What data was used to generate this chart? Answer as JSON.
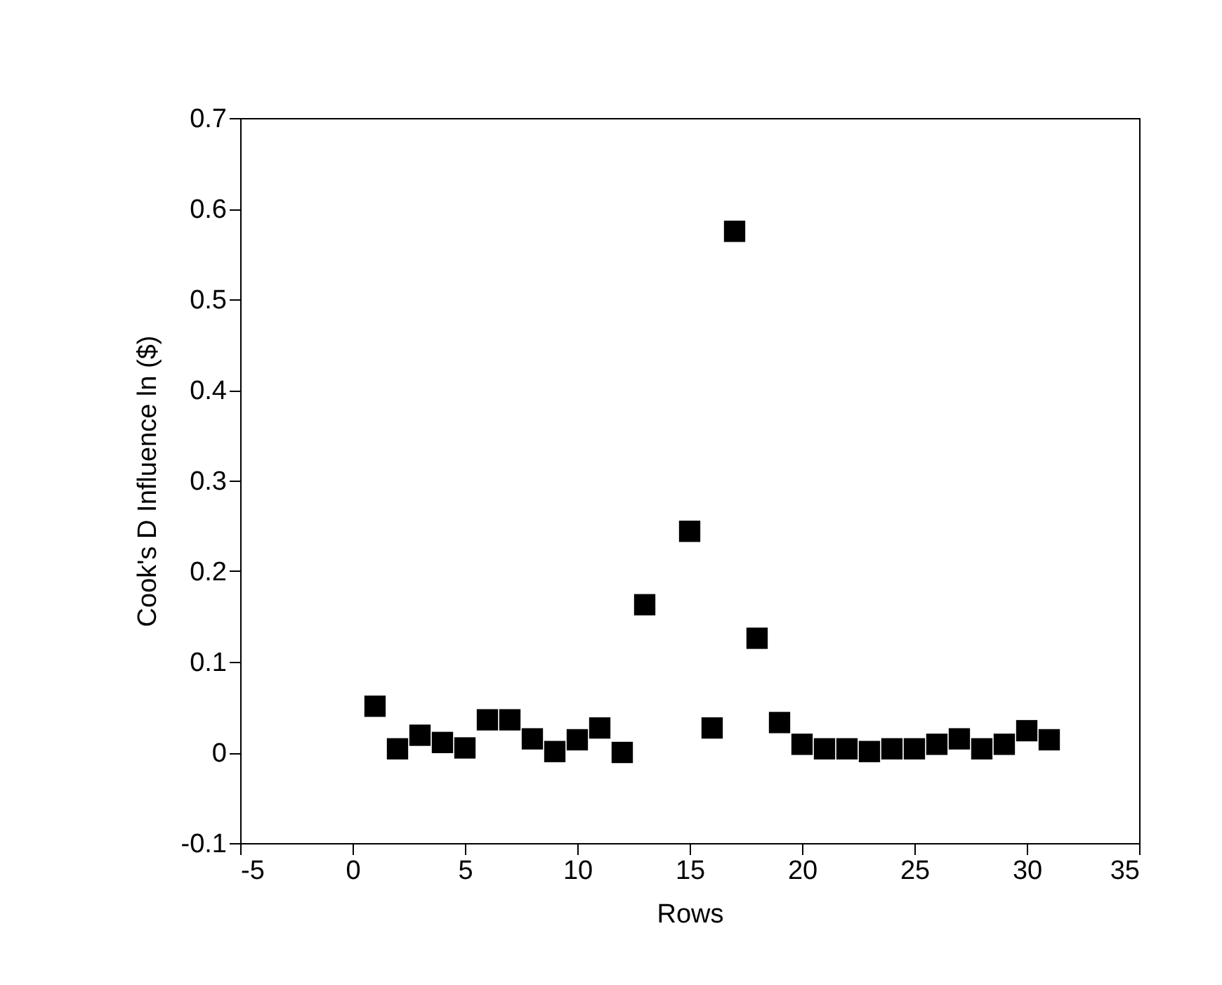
{
  "chart_data": {
    "type": "scatter",
    "xlabel": "Rows",
    "ylabel": "Cook's D Influence ln ($)",
    "x": [
      1,
      2,
      3,
      4,
      5,
      6,
      7,
      8,
      9,
      10,
      11,
      12,
      13,
      15,
      16,
      17,
      18,
      19,
      20,
      21,
      22,
      23,
      24,
      25,
      26,
      27,
      28,
      29,
      30,
      31
    ],
    "values": [
      0.051,
      0.004,
      0.019,
      0.011,
      0.005,
      0.036,
      0.036,
      0.015,
      0.001,
      0.014,
      0.027,
      0.0,
      0.163,
      0.244,
      0.027,
      0.575,
      0.126,
      0.033,
      0.009,
      0.004,
      0.004,
      0.001,
      0.004,
      0.004,
      0.009,
      0.015,
      0.004,
      0.009,
      0.024,
      0.014
    ],
    "color": "#000000",
    "marker": "square",
    "xlim": [
      -5,
      35
    ],
    "xticks": [
      -5,
      0,
      5,
      10,
      15,
      20,
      25,
      30,
      35
    ],
    "ylim": [
      -0.1,
      0.7
    ],
    "yticks": [
      -0.1,
      0,
      0.1,
      0.2,
      0.3,
      0.4,
      0.5,
      0.6,
      0.7
    ],
    "grid": false
  }
}
